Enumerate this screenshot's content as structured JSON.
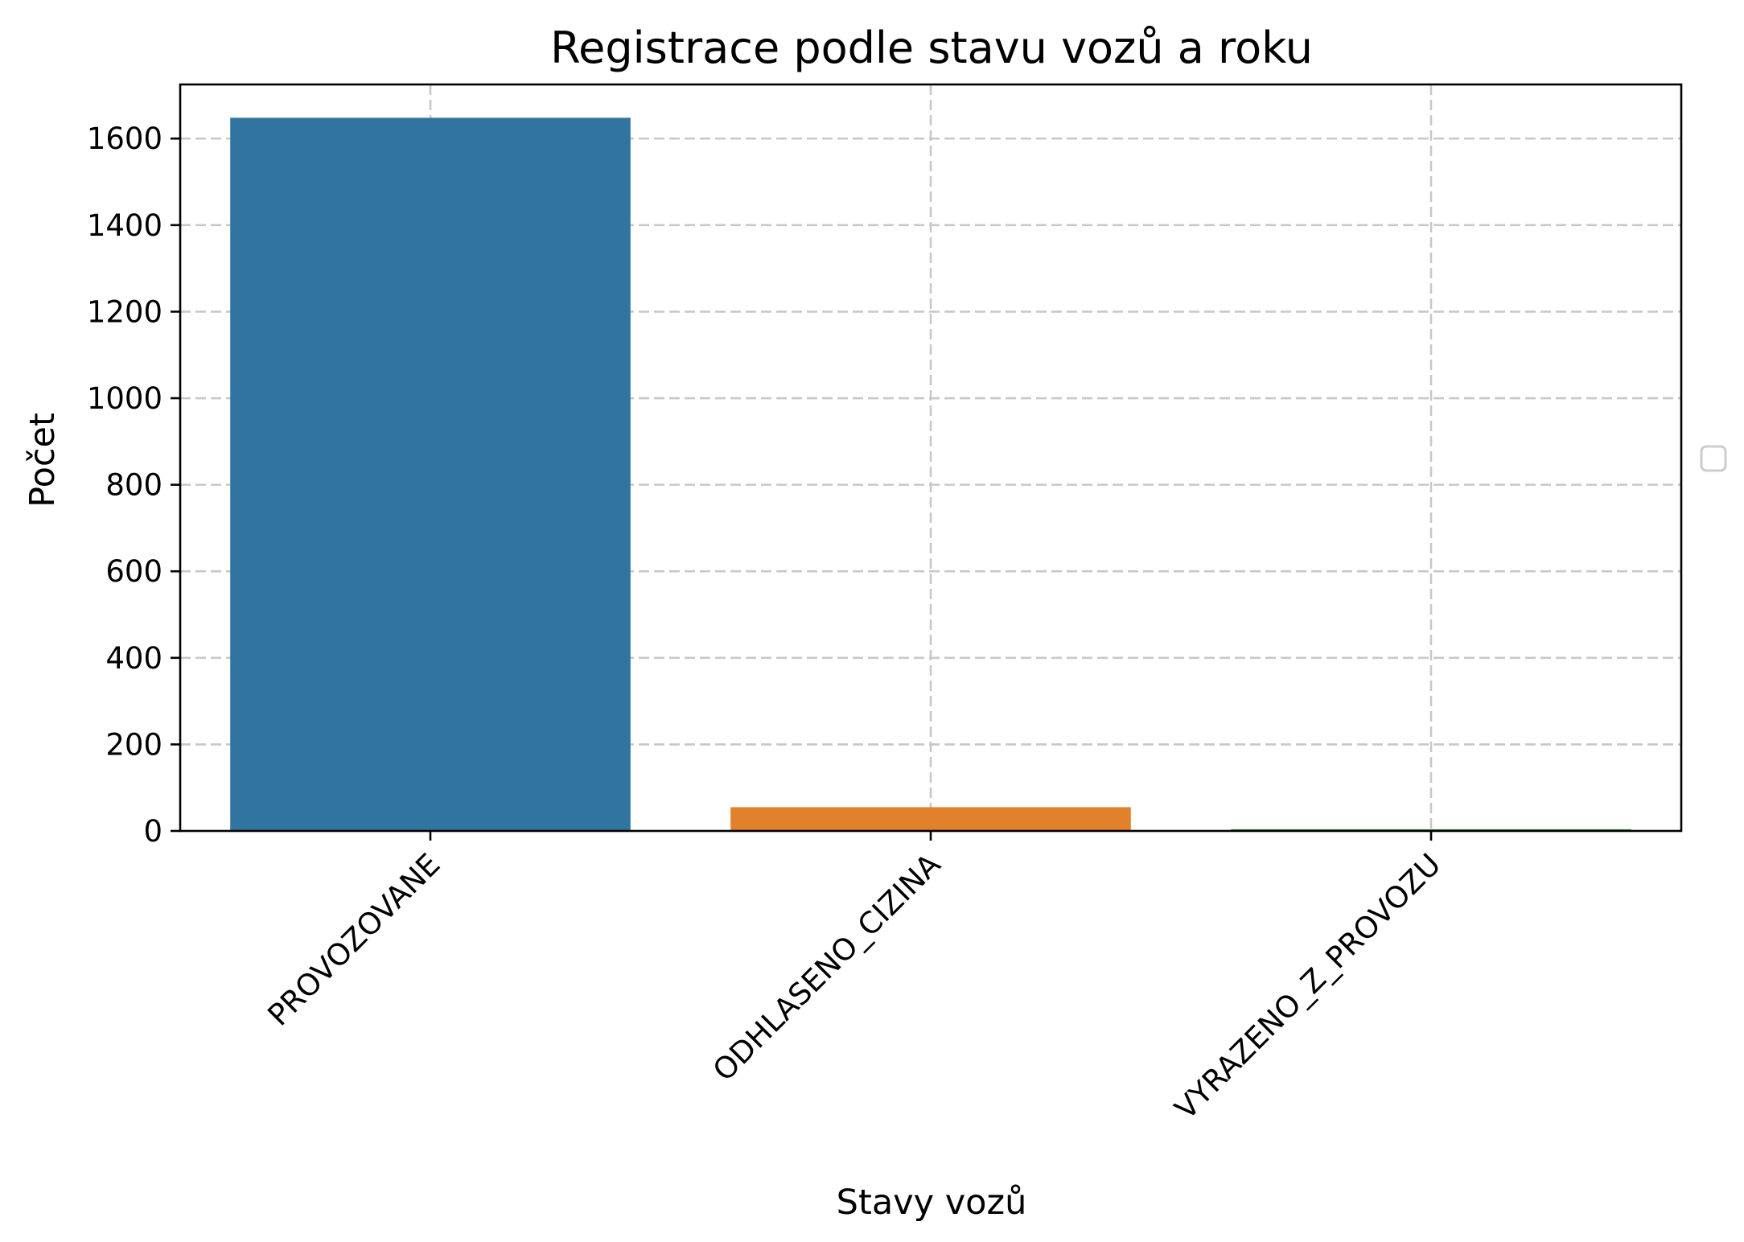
{
  "chart_data": {
    "type": "bar",
    "title": "Registrace podle stavu vozů a roku",
    "xlabel": "Stavy vozů",
    "ylabel": "Počet",
    "categories": [
      "PROVOZOVANE",
      "ODHLASENO_CIZINA",
      "VYRAZENO_Z_PROVOZU"
    ],
    "values": [
      1648,
      55,
      4
    ],
    "colors": [
      "#3274a1",
      "#e1812c",
      "#3a923a"
    ],
    "ylim": [
      0,
      1725
    ],
    "yticks": [
      0,
      200,
      400,
      600,
      800,
      1000,
      1200,
      1400,
      1600
    ],
    "grid": true,
    "legend": {
      "placement": "center-right",
      "entries": []
    }
  }
}
